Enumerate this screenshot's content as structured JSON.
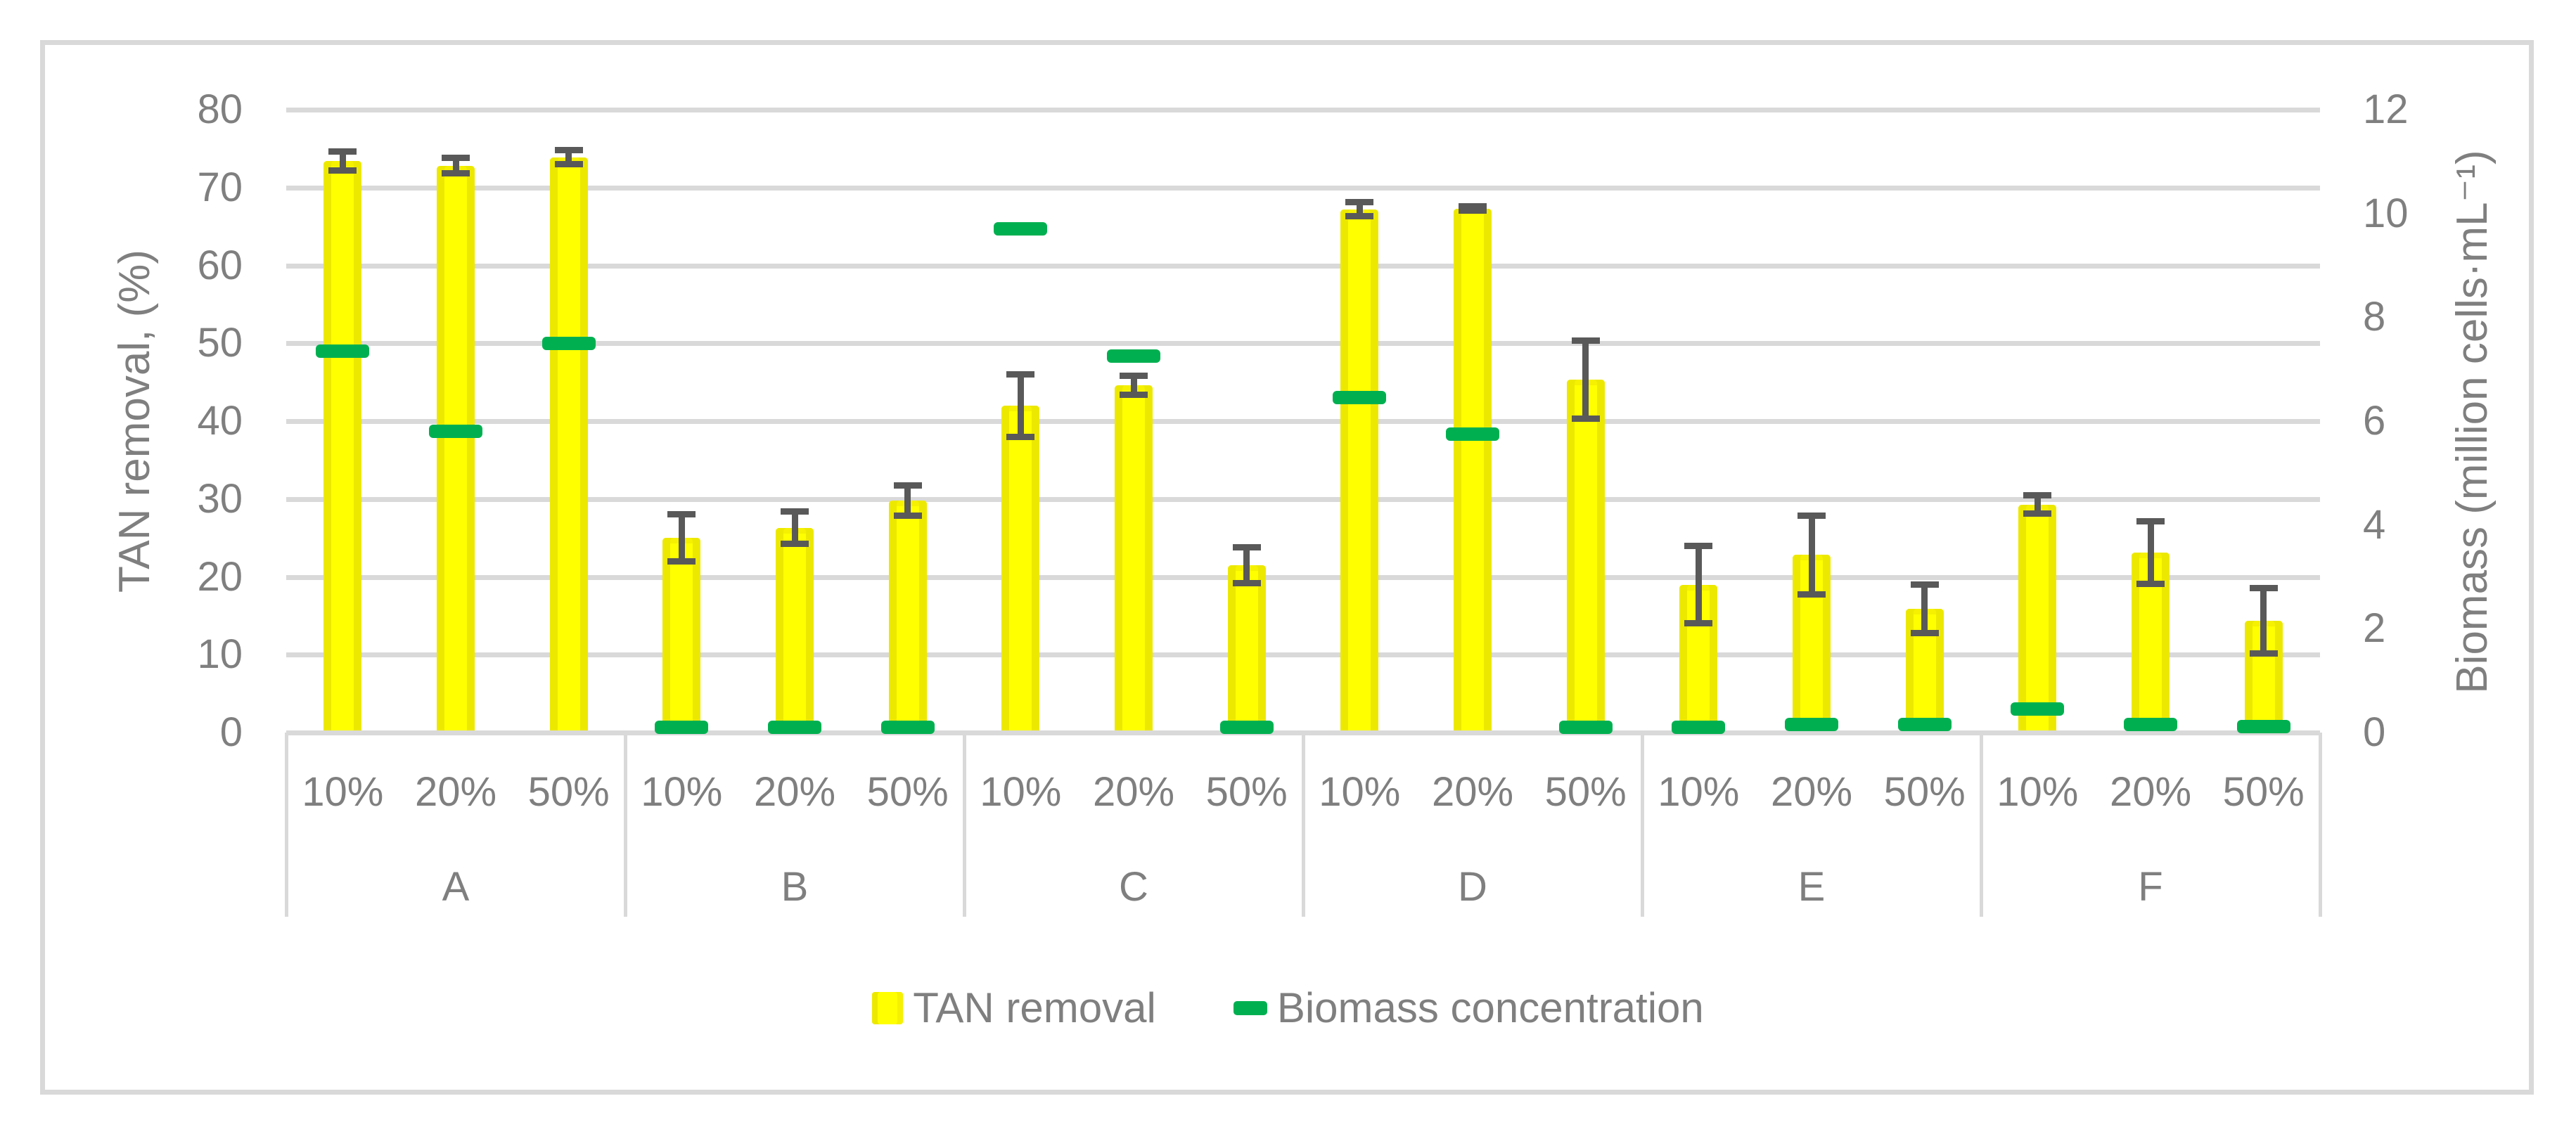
{
  "chart_data": {
    "type": "bar",
    "groups": [
      "A",
      "B",
      "C",
      "D",
      "E",
      "F"
    ],
    "subcategories": [
      "10%",
      "20%",
      "50%"
    ],
    "left_axis": {
      "title": "TAN removal, (%)",
      "min": 0,
      "max": 80,
      "step": 10
    },
    "right_axis": {
      "title": "Biomass (million cells·mL⁻¹)",
      "min": 0,
      "max": 12,
      "step": 2
    },
    "series": [
      {
        "name": "TAN removal",
        "type": "bar",
        "axis": "left",
        "values": [
          [
            73.4,
            72.8,
            73.9
          ],
          [
            25.0,
            26.3,
            29.8
          ],
          [
            42.0,
            44.6,
            21.5
          ],
          [
            67.2,
            67.3,
            45.3
          ],
          [
            19.0,
            22.8,
            15.9
          ],
          [
            29.3,
            23.1,
            14.4
          ]
        ],
        "errors": [
          [
            1.2,
            1.0,
            0.9
          ],
          [
            3.0,
            2.1,
            1.9
          ],
          [
            4.0,
            1.2,
            2.3
          ],
          [
            0.9,
            0.3,
            5.0
          ],
          [
            5.0,
            5.1,
            3.1
          ],
          [
            1.2,
            4.0,
            4.2
          ]
        ]
      },
      {
        "name": "Biomass concentration",
        "type": "dash",
        "axis": "right",
        "values": [
          [
            7.35,
            5.8,
            7.5
          ],
          [
            0.1,
            0.1,
            0.1
          ],
          [
            9.7,
            7.25,
            0.1
          ],
          [
            6.45,
            5.75,
            0.1
          ],
          [
            0.1,
            0.15,
            0.15
          ],
          [
            0.45,
            0.15,
            0.12
          ]
        ]
      }
    ],
    "legend": {
      "tan": "TAN removal",
      "biomass": "Biomass concentration",
      "position": "bottom"
    },
    "layout_hints": {
      "grid": "horizontal",
      "legend_position": "bottom-center",
      "error_bars": true
    },
    "colors": {
      "bar_fill": "#FFFF00",
      "bar_edge": "#EDE800",
      "bar_top_edge": "#F5F100",
      "dash_green": "#00B050",
      "error_gray": "#595959",
      "grid_gray": "#D9D9D9",
      "text_gray": "#7F7F7F"
    }
  }
}
